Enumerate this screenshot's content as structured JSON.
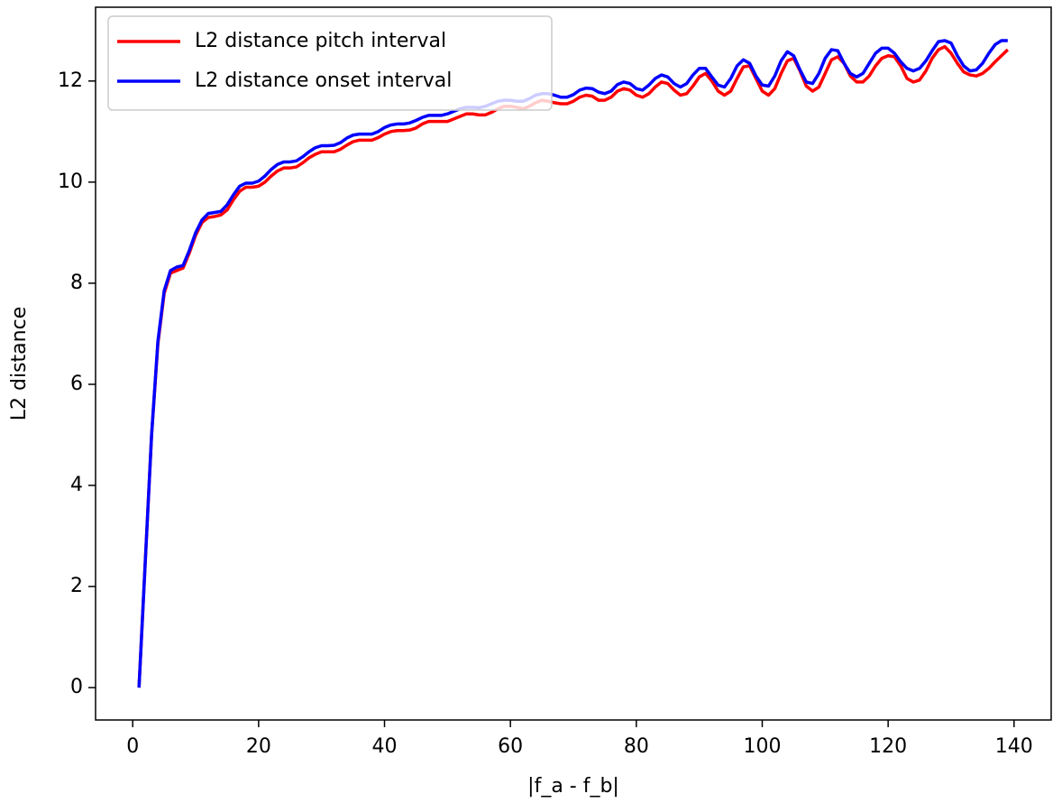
{
  "chart_data": {
    "type": "line",
    "x_label": "|f_a - f_b|",
    "y_label": "L2 distance",
    "x": [
      1,
      2,
      3,
      4,
      5,
      6,
      7,
      8,
      9,
      10,
      11,
      12,
      13,
      14,
      15,
      16,
      17,
      18,
      19,
      20,
      21,
      22,
      23,
      24,
      25,
      26,
      27,
      28,
      29,
      30,
      31,
      32,
      33,
      34,
      35,
      36,
      37,
      38,
      39,
      40,
      41,
      42,
      43,
      44,
      45,
      46,
      47,
      48,
      49,
      50,
      51,
      52,
      53,
      54,
      55,
      56,
      57,
      58,
      59,
      60,
      61,
      62,
      63,
      64,
      65,
      66,
      67,
      68,
      69,
      70,
      71,
      72,
      73,
      74,
      75,
      76,
      77,
      78,
      79,
      80,
      81,
      82,
      83,
      84,
      85,
      86,
      87,
      88,
      89,
      90,
      91,
      92,
      93,
      94,
      95,
      96,
      97,
      98,
      99,
      100,
      101,
      102,
      103,
      104,
      105,
      106,
      107,
      108,
      109,
      110,
      111,
      112,
      113,
      114,
      115,
      116,
      117,
      118,
      119,
      120,
      121,
      122,
      123,
      124,
      125,
      126,
      127,
      128,
      129,
      130,
      131,
      132,
      133,
      134,
      135,
      136,
      137,
      138,
      139
    ],
    "series": [
      {
        "name": "L2 distance pitch interval",
        "color": "#ff0000",
        "values": [
          0,
          2.5,
          5.0,
          6.8,
          7.8,
          8.2,
          8.25,
          8.3,
          8.6,
          8.95,
          9.2,
          9.3,
          9.32,
          9.35,
          9.45,
          9.65,
          9.82,
          9.9,
          9.9,
          9.92,
          10.0,
          10.12,
          10.22,
          10.28,
          10.28,
          10.3,
          10.38,
          10.48,
          10.55,
          10.6,
          10.6,
          10.6,
          10.65,
          10.73,
          10.8,
          10.83,
          10.83,
          10.83,
          10.88,
          10.95,
          11.0,
          11.02,
          11.02,
          11.03,
          11.07,
          11.15,
          11.2,
          11.2,
          11.2,
          11.2,
          11.25,
          11.3,
          11.35,
          11.35,
          11.33,
          11.33,
          11.38,
          11.45,
          11.5,
          11.5,
          11.48,
          11.45,
          11.5,
          11.57,
          11.62,
          11.6,
          11.57,
          11.55,
          11.55,
          11.6,
          11.68,
          11.72,
          11.7,
          11.62,
          11.62,
          11.68,
          11.8,
          11.85,
          11.82,
          11.72,
          11.68,
          11.75,
          11.88,
          11.98,
          11.95,
          11.82,
          11.72,
          11.75,
          11.9,
          12.08,
          12.15,
          12.0,
          11.8,
          11.72,
          11.8,
          12.05,
          12.28,
          12.3,
          12.05,
          11.8,
          11.72,
          11.85,
          12.15,
          12.4,
          12.45,
          12.2,
          11.9,
          11.8,
          11.88,
          12.15,
          12.42,
          12.48,
          12.35,
          12.1,
          11.98,
          11.98,
          12.1,
          12.3,
          12.45,
          12.5,
          12.48,
          12.3,
          12.05,
          11.98,
          12.02,
          12.2,
          12.45,
          12.62,
          12.68,
          12.55,
          12.35,
          12.18,
          12.12,
          12.1,
          12.15,
          12.25,
          12.38,
          12.5,
          12.62
        ]
      },
      {
        "name": "L2 distance onset interval",
        "color": "#0000ff",
        "values": [
          0,
          2.5,
          5.0,
          6.85,
          7.85,
          8.25,
          8.32,
          8.35,
          8.65,
          9.0,
          9.25,
          9.38,
          9.4,
          9.42,
          9.55,
          9.75,
          9.92,
          9.98,
          9.98,
          10.02,
          10.12,
          10.25,
          10.35,
          10.4,
          10.4,
          10.42,
          10.5,
          10.6,
          10.68,
          10.72,
          10.72,
          10.73,
          10.78,
          10.87,
          10.93,
          10.95,
          10.95,
          10.95,
          11.0,
          11.08,
          11.13,
          11.15,
          11.15,
          11.17,
          11.22,
          11.28,
          11.32,
          11.32,
          11.32,
          11.35,
          11.4,
          11.45,
          11.48,
          11.48,
          11.47,
          11.5,
          11.55,
          11.6,
          11.62,
          11.62,
          11.6,
          11.6,
          11.65,
          11.72,
          11.75,
          11.75,
          11.72,
          11.68,
          11.68,
          11.73,
          11.82,
          11.86,
          11.85,
          11.78,
          11.75,
          11.8,
          11.93,
          11.98,
          11.95,
          11.85,
          11.82,
          11.92,
          12.05,
          12.12,
          12.08,
          11.95,
          11.88,
          11.95,
          12.12,
          12.25,
          12.25,
          12.08,
          11.92,
          11.88,
          12.05,
          12.3,
          12.42,
          12.35,
          12.1,
          11.92,
          11.9,
          12.1,
          12.4,
          12.58,
          12.5,
          12.22,
          11.98,
          11.95,
          12.15,
          12.45,
          12.62,
          12.6,
          12.35,
          12.15,
          12.08,
          12.15,
          12.35,
          12.55,
          12.65,
          12.65,
          12.55,
          12.38,
          12.25,
          12.2,
          12.25,
          12.4,
          12.6,
          12.78,
          12.8,
          12.75,
          12.5,
          12.3,
          12.2,
          12.22,
          12.35,
          12.55,
          12.72,
          12.8,
          12.8
        ]
      }
    ],
    "xlim": [
      -5.9,
      145.9
    ],
    "ylim": [
      -0.64,
      13.46
    ],
    "xticks": [
      0,
      20,
      40,
      60,
      80,
      100,
      120,
      140
    ],
    "yticks": [
      0,
      2,
      4,
      6,
      8,
      10,
      12
    ],
    "legend": "upper left"
  }
}
